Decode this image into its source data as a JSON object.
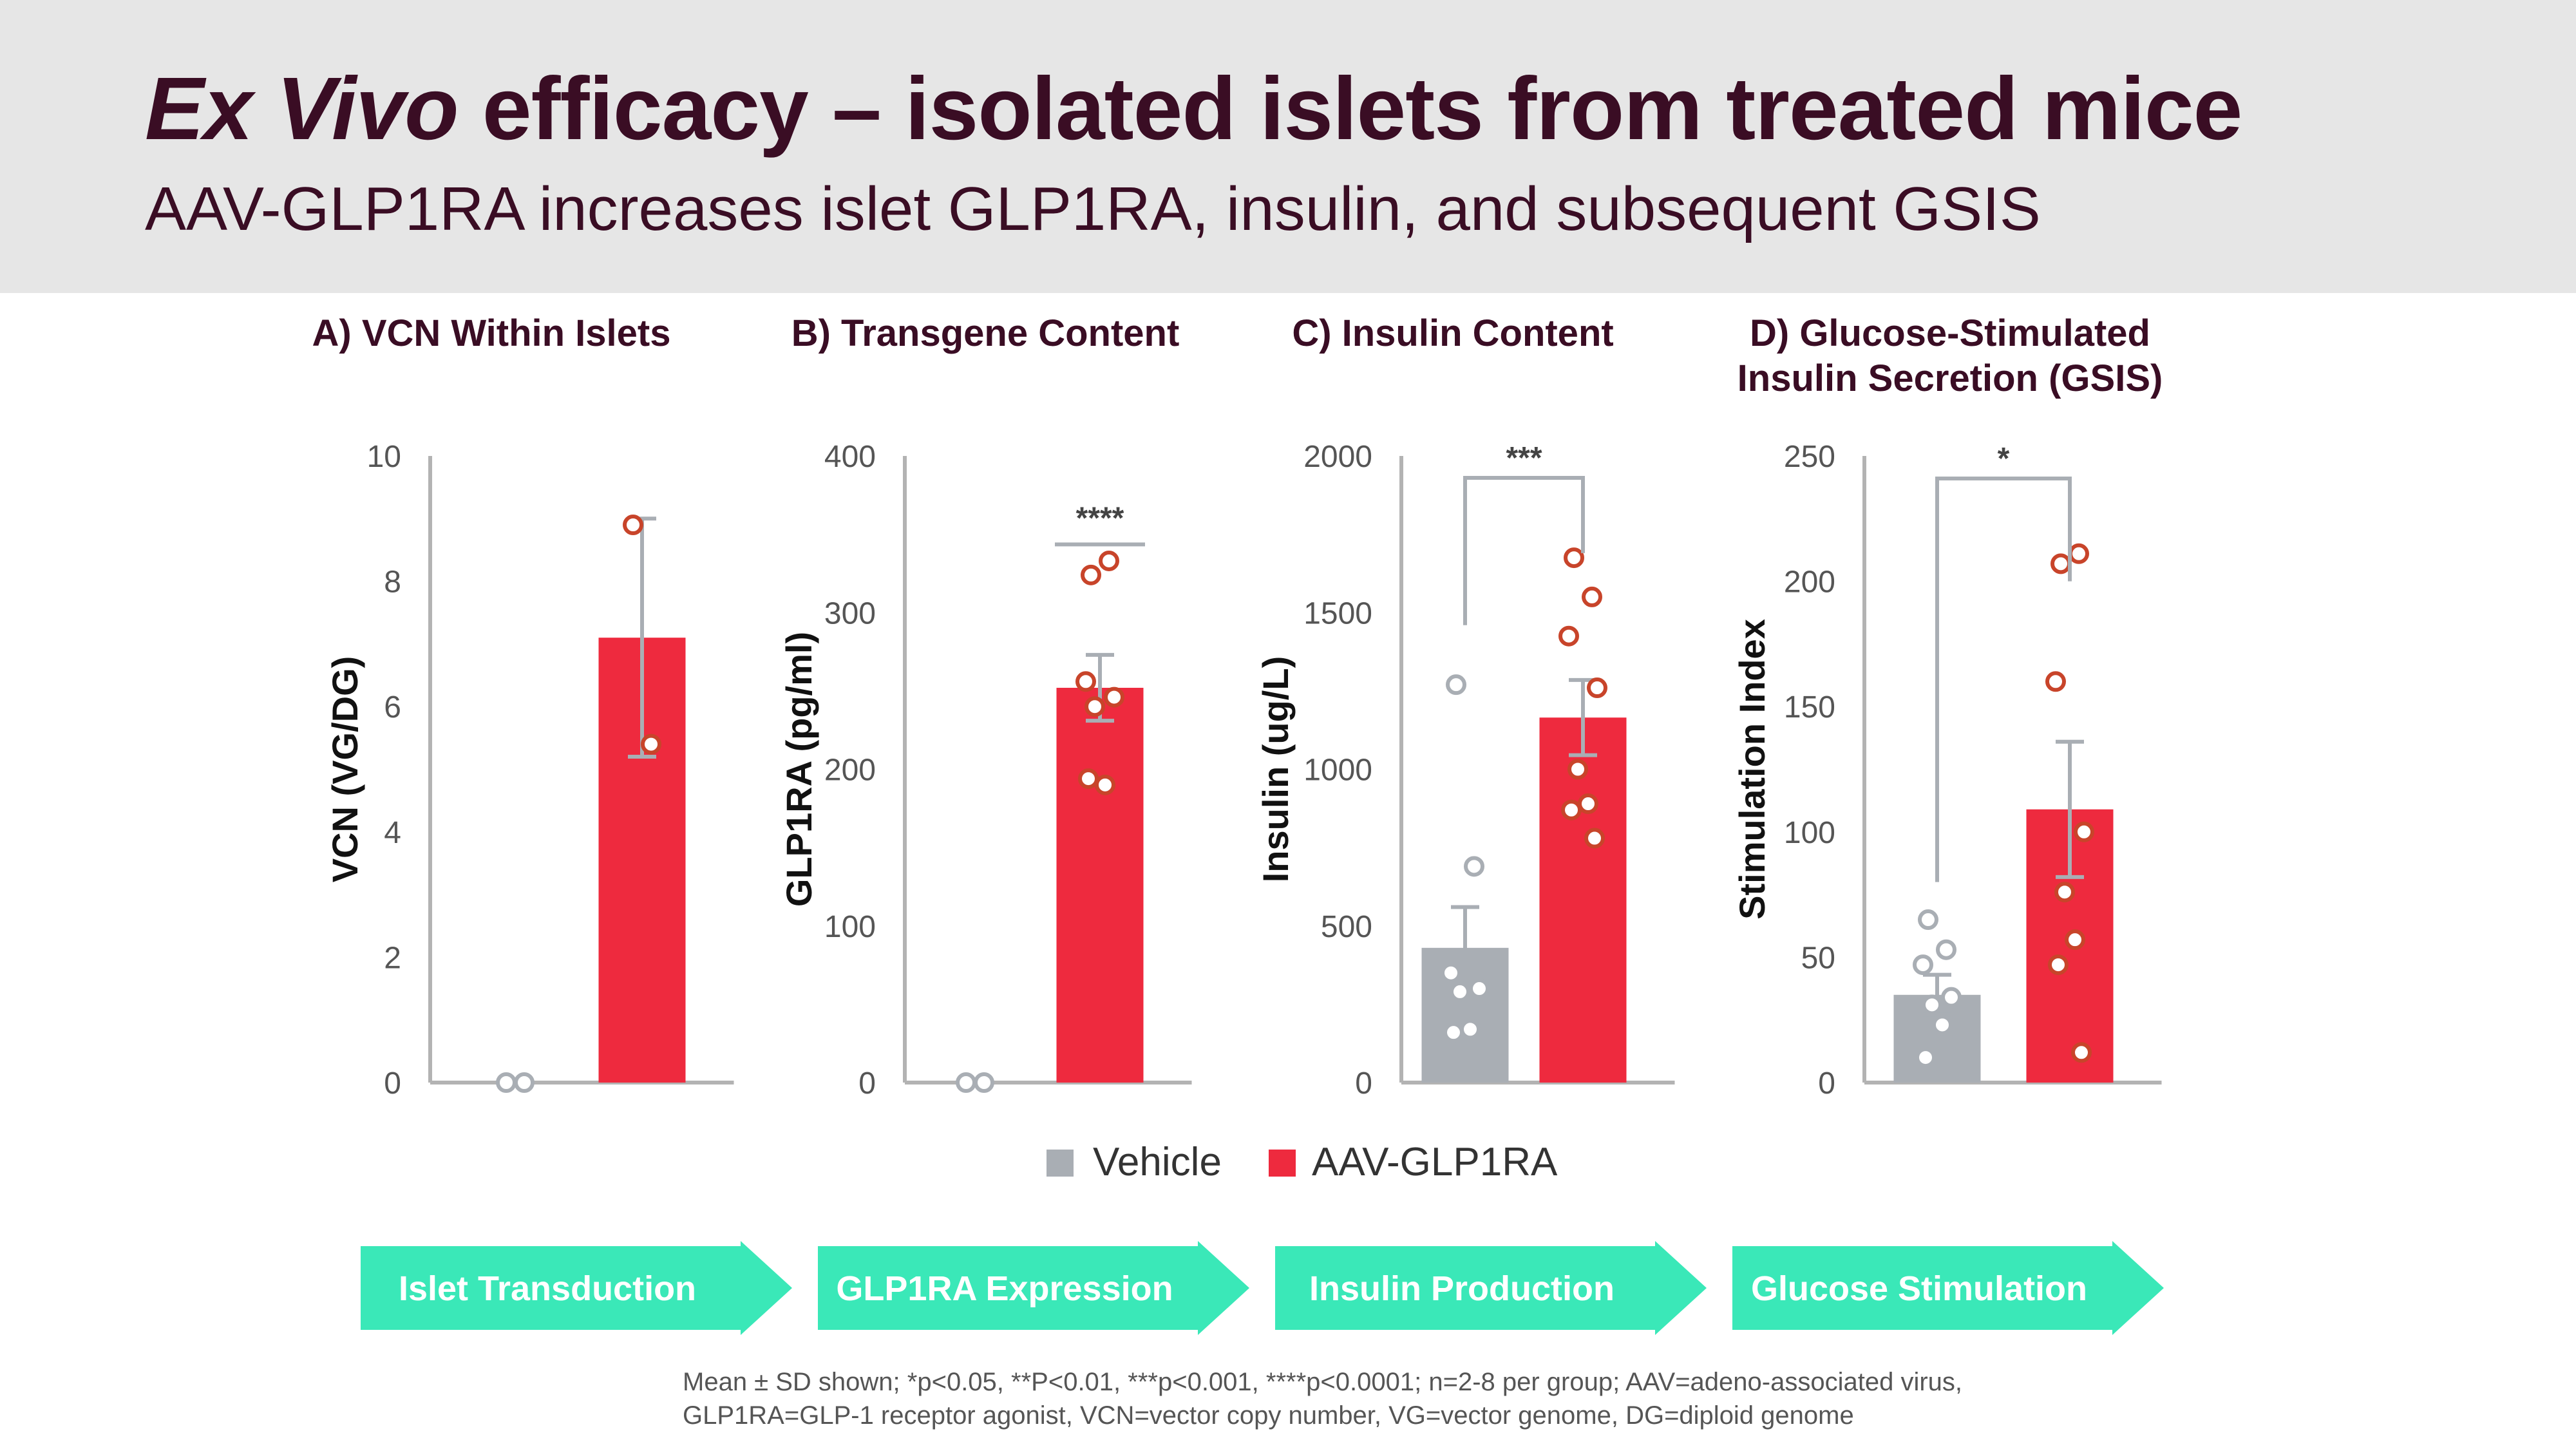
{
  "header": {
    "title_italic": "Ex Vivo",
    "title_rest": " efficacy – isolated islets from treated mice",
    "subtitle": "AAV-GLP1RA increases islet GLP1RA, insulin, and subsequent GSIS"
  },
  "colors": {
    "vehicle": "#a9aeb4",
    "aav": "#ee2a3e",
    "aav_point": "#c8442a",
    "vehicle_point": "#a9aeb4",
    "error_bar": "#a9aeb4",
    "arrow": "#3ae8b8",
    "title": "#3a0d24"
  },
  "legend": {
    "vehicle": "Vehicle",
    "aav": "AAV-GLP1RA"
  },
  "chart_data": [
    {
      "type": "bar",
      "title_lines": [
        "A) VCN Within Islets"
      ],
      "categories": [
        "Vehicle",
        "AAV-GLP1RA"
      ],
      "ylabel": "VCN (VG/DG)",
      "ylim": [
        0,
        10
      ],
      "yticks": [
        0,
        2,
        4,
        6,
        8,
        10
      ],
      "series": [
        {
          "name": "Vehicle",
          "mean": 0,
          "sd": 0,
          "points": [
            0,
            0
          ]
        },
        {
          "name": "AAV-GLP1RA",
          "mean": 7.1,
          "sd": 1.9,
          "points": [
            8.9,
            5.4
          ]
        }
      ],
      "significance": null
    },
    {
      "type": "bar",
      "title_lines": [
        "B) Transgene Content"
      ],
      "categories": [
        "Vehicle",
        "AAV-GLP1RA"
      ],
      "ylabel": "GLP1RA (pg/ml)",
      "ylim": [
        0,
        400
      ],
      "yticks": [
        0,
        100,
        200,
        300,
        400
      ],
      "series": [
        {
          "name": "Vehicle",
          "mean": 0,
          "sd": 0,
          "points": [
            0,
            0
          ]
        },
        {
          "name": "AAV-GLP1RA",
          "mean": 252,
          "sd": 21,
          "points": [
            324,
            333,
            256,
            246,
            240,
            190,
            194
          ]
        }
      ],
      "significance": {
        "label": "****",
        "y": 362,
        "bracket": false
      }
    },
    {
      "type": "bar",
      "title_lines": [
        "C) Insulin Content"
      ],
      "categories": [
        "Vehicle",
        "AAV-GLP1RA"
      ],
      "ylabel": "Insulin (ug/L)",
      "ylim": [
        0,
        2000
      ],
      "yticks": [
        0,
        500,
        1000,
        1500,
        2000
      ],
      "series": [
        {
          "name": "Vehicle",
          "mean": 430,
          "sd": 130,
          "points": [
            1270,
            690,
            350,
            300,
            290,
            170,
            160
          ]
        },
        {
          "name": "AAV-GLP1RA",
          "mean": 1165,
          "sd": 120,
          "points": [
            1675,
            1550,
            1425,
            1260,
            1000,
            890,
            870,
            780
          ]
        }
      ],
      "significance": {
        "label": "***",
        "y": 1930,
        "bracket": true,
        "left_end": 1460,
        "right_end": 1690
      }
    },
    {
      "type": "bar",
      "title_lines": [
        "D) Glucose-Stimulated",
        "Insulin Secretion (GSIS)"
      ],
      "categories": [
        "Vehicle",
        "AAV-GLP1RA"
      ],
      "ylabel": "Stimulation Index",
      "ylim": [
        0,
        250
      ],
      "yticks": [
        0,
        50,
        100,
        150,
        200,
        250
      ],
      "series": [
        {
          "name": "Vehicle",
          "mean": 35,
          "sd": 8,
          "points": [
            65,
            53,
            47,
            34,
            31,
            23,
            10
          ]
        },
        {
          "name": "AAV-GLP1RA",
          "mean": 109,
          "sd": 27,
          "points": [
            207,
            211,
            160,
            100,
            76,
            57,
            47,
            12
          ]
        }
      ],
      "significance": {
        "label": "*",
        "y": 241,
        "bracket": true,
        "left_end": 80,
        "right_end": 200
      }
    }
  ],
  "arrows": [
    "Islet Transduction",
    "GLP1RA Expression",
    "Insulin Production",
    "Glucose Stimulation"
  ],
  "footnote": {
    "line1": "Mean ± SD shown; *p<0.05, **P<0.01, ***p<0.001, ****p<0.0001; n=2-8 per group; AAV=adeno-associated virus,",
    "line2": "GLP1RA=GLP-1 receptor agonist, VCN=vector copy number, VG=vector genome, DG=diploid genome"
  }
}
